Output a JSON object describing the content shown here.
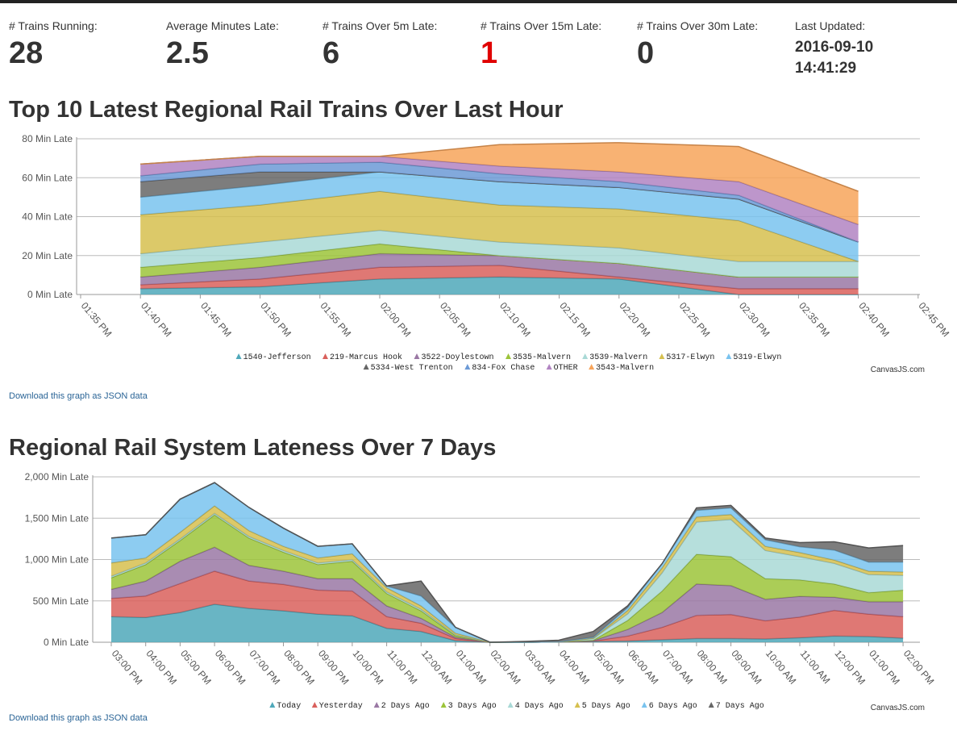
{
  "stats": [
    {
      "label": "# Trains Running:",
      "value": "28",
      "color": "#333333"
    },
    {
      "label": "Average Minutes Late:",
      "value": "2.5",
      "color": "#333333"
    },
    {
      "label": "# Trains Over 5m Late:",
      "value": "6",
      "color": "#333333"
    },
    {
      "label": "# Trains Over 15m Late:",
      "value": "1",
      "color": "#e00000"
    },
    {
      "label": "# Trains Over 30m Late:",
      "value": "0",
      "color": "#333333"
    }
  ],
  "last_updated": {
    "label": "Last Updated:",
    "date": "2016-09-10",
    "time": "14:41:29"
  },
  "download_link_text": "Download this graph as JSON data",
  "credit": "CanvasJS.com",
  "chart_data": [
    {
      "type": "area",
      "stacked": true,
      "title": "Top 10 Latest Regional Rail Trains Over Last Hour",
      "y_suffix": " Min Late",
      "ylim": [
        0,
        80
      ],
      "y_ticks": [
        0,
        20,
        40,
        60,
        80
      ],
      "x_ticks": [
        "01:35 PM",
        "01:40 PM",
        "01:45 PM",
        "01:50 PM",
        "01:55 PM",
        "02:00 PM",
        "02:05 PM",
        "02:10 PM",
        "02:15 PM",
        "02:20 PM",
        "02:25 PM",
        "02:30 PM",
        "02:35 PM",
        "02:40 PM",
        "02:45 PM"
      ],
      "x_points": [
        "01:40 PM",
        "01:50 PM",
        "02:00 PM",
        "02:10 PM",
        "02:20 PM",
        "02:30 PM",
        "02:40 PM"
      ],
      "series": [
        {
          "name": "1540-Jefferson",
          "color": "#4fa8ba",
          "values": [
            3,
            4,
            8,
            9,
            8,
            0,
            0
          ]
        },
        {
          "name": "219-Marcus Hook",
          "color": "#d9605c",
          "values": [
            2,
            4,
            6,
            6,
            1,
            3,
            3
          ]
        },
        {
          "name": "3522-Doylestown",
          "color": "#9a78a4",
          "values": [
            4,
            6,
            7,
            5,
            7,
            6,
            6
          ]
        },
        {
          "name": "3535-Malvern",
          "color": "#9cc43a",
          "values": [
            5,
            5,
            5,
            0,
            0,
            0,
            0
          ]
        },
        {
          "name": "3539-Malvern",
          "color": "#a9d9d6",
          "values": [
            7,
            8,
            7,
            7,
            8,
            8,
            8
          ]
        },
        {
          "name": "5317-Elwyn",
          "color": "#d6c04f",
          "values": [
            20,
            19,
            20,
            19,
            20,
            21,
            0
          ]
        },
        {
          "name": "5319-Elwyn",
          "color": "#79c3ee",
          "values": [
            9,
            10,
            10,
            12,
            11,
            11,
            10
          ]
        },
        {
          "name": "5334-West Trenton",
          "color": "#666666",
          "values": [
            8,
            7,
            0,
            0,
            0,
            0,
            0
          ]
        },
        {
          "name": "834-Fox Chase",
          "color": "#6c9ad6",
          "values": [
            3,
            4,
            5,
            4,
            3,
            2,
            0
          ]
        },
        {
          "name": "OTHER",
          "color": "#b184c2",
          "values": [
            6,
            4,
            3,
            4,
            5,
            7,
            9
          ]
        },
        {
          "name": "3543-Malvern",
          "color": "#f7a45a",
          "values": [
            0,
            0,
            0,
            11,
            15,
            18,
            17
          ]
        }
      ]
    },
    {
      "type": "area",
      "stacked": true,
      "title": "Regional Rail System Lateness Over 7 Days",
      "y_suffix": " Min Late",
      "ylim": [
        0,
        2000
      ],
      "y_ticks": [
        0,
        500,
        1000,
        1500,
        2000
      ],
      "x_ticks": [
        "03:00 PM",
        "04:00 PM",
        "05:00 PM",
        "06:00 PM",
        "07:00 PM",
        "08:00 PM",
        "09:00 PM",
        "10:00 PM",
        "11:00 PM",
        "12:00 AM",
        "01:00 AM",
        "02:00 AM",
        "03:00 AM",
        "04:00 AM",
        "05:00 AM",
        "06:00 AM",
        "07:00 AM",
        "08:00 AM",
        "09:00 AM",
        "10:00 AM",
        "11:00 AM",
        "12:00 PM",
        "01:00 PM",
        "02:00 PM"
      ],
      "x_points": [
        "03:00 PM",
        "04:00 PM",
        "05:00 PM",
        "06:00 PM",
        "07:00 PM",
        "08:00 PM",
        "09:00 PM",
        "10:00 PM",
        "11:00 PM",
        "12:00 AM",
        "01:00 AM",
        "02:00 AM",
        "03:00 AM",
        "04:00 AM",
        "05:00 AM",
        "06:00 AM",
        "07:00 AM",
        "08:00 AM",
        "09:00 AM",
        "10:00 AM",
        "11:00 AM",
        "12:00 PM",
        "01:00 PM",
        "02:00 PM"
      ],
      "series": [
        {
          "name": "Today",
          "color": "#4fa8ba",
          "values": [
            310,
            300,
            360,
            460,
            410,
            380,
            340,
            320,
            170,
            130,
            20,
            0,
            0,
            5,
            10,
            15,
            30,
            45,
            45,
            40,
            55,
            75,
            70,
            50
          ]
        },
        {
          "name": "Yesterday",
          "color": "#d9605c",
          "values": [
            220,
            260,
            350,
            400,
            330,
            320,
            290,
            300,
            140,
            100,
            25,
            0,
            0,
            0,
            5,
            60,
            150,
            280,
            290,
            220,
            250,
            310,
            270,
            260
          ]
        },
        {
          "name": "2 Days Ago",
          "color": "#9a78a4",
          "values": [
            110,
            180,
            270,
            290,
            190,
            160,
            140,
            150,
            130,
            60,
            15,
            0,
            0,
            0,
            5,
            80,
            180,
            380,
            350,
            260,
            250,
            160,
            150,
            180
          ]
        },
        {
          "name": "3 Days Ago",
          "color": "#9cc43a",
          "values": [
            140,
            200,
            250,
            390,
            330,
            230,
            170,
            210,
            150,
            90,
            20,
            0,
            0,
            0,
            5,
            110,
            260,
            360,
            350,
            250,
            200,
            160,
            110,
            140
          ]
        },
        {
          "name": "4 Days Ago",
          "color": "#a9d9d6",
          "values": [
            20,
            20,
            20,
            20,
            20,
            20,
            20,
            20,
            20,
            20,
            10,
            0,
            0,
            0,
            20,
            80,
            220,
            390,
            450,
            340,
            280,
            250,
            220,
            180
          ]
        },
        {
          "name": "5 Days Ago",
          "color": "#d6c04f",
          "values": [
            160,
            60,
            80,
            90,
            70,
            50,
            60,
            70,
            50,
            40,
            20,
            0,
            0,
            0,
            5,
            40,
            60,
            60,
            60,
            50,
            50,
            40,
            40,
            40
          ]
        },
        {
          "name": "6 Days Ago",
          "color": "#79c3ee",
          "values": [
            300,
            280,
            400,
            280,
            280,
            220,
            140,
            120,
            20,
            120,
            70,
            0,
            0,
            0,
            10,
            35,
            50,
            80,
            80,
            80,
            70,
            120,
            110,
            120
          ]
        },
        {
          "name": "7 Days Ago",
          "color": "#666666",
          "values": [
            0,
            0,
            0,
            0,
            0,
            0,
            0,
            0,
            0,
            180,
            0,
            0,
            10,
            20,
            70,
            20,
            0,
            30,
            30,
            20,
            50,
            100,
            170,
            200
          ]
        }
      ]
    }
  ]
}
